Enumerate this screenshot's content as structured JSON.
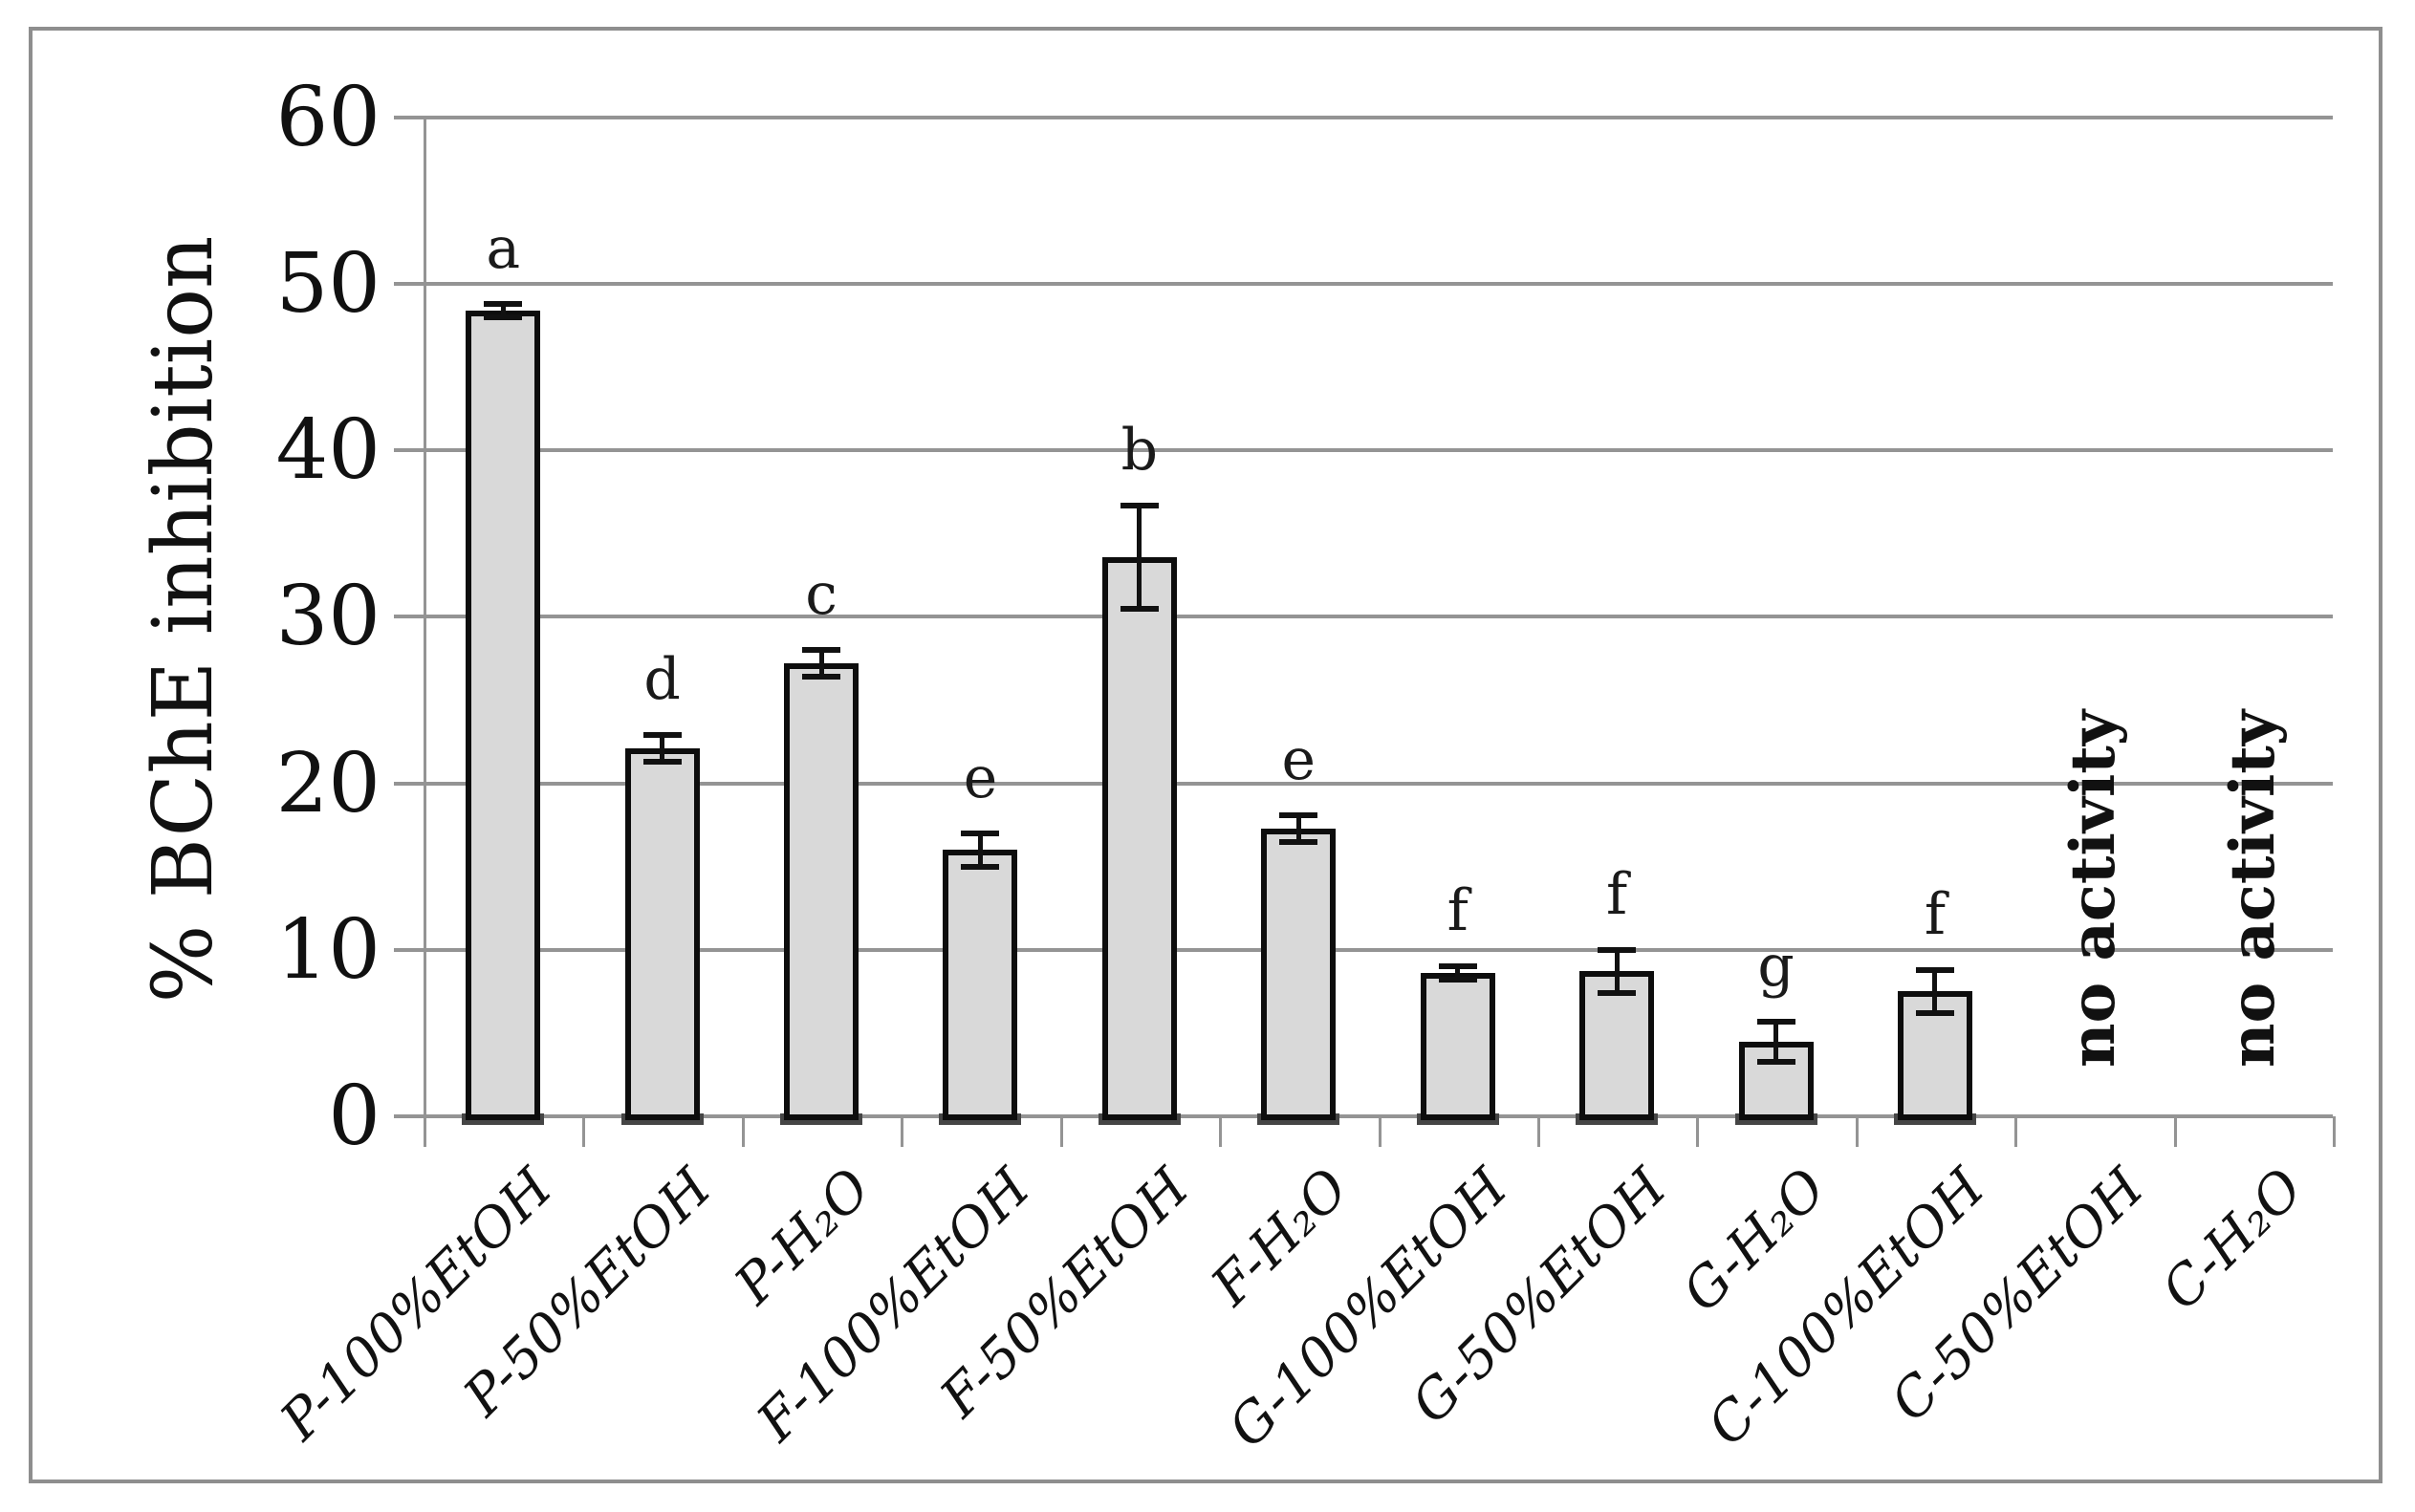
{
  "figure": {
    "background": "#ffffff",
    "border_color": "#8e8e8e"
  },
  "chart_data": {
    "type": "bar",
    "title": "",
    "xlabel": "",
    "ylabel": "% BChE inhibition",
    "ylim": [
      0,
      60
    ],
    "yticks": [
      0,
      10,
      20,
      30,
      40,
      50,
      60
    ],
    "grid": "horizontal",
    "legend_position": "none",
    "categories": [
      "P-100%EtOH",
      "P-50%EtOH",
      "P-H₂O",
      "F-100%EtOH",
      "F-50%EtOH",
      "F-H₂O",
      "G-100%EtOH",
      "G-50%EtOH",
      "G-H₂O",
      "C-100%EtOH",
      "C-50%EtOH",
      "C-H₂O"
    ],
    "series": [
      {
        "name": "% BChE inhibition",
        "values": [
          48.4,
          22.1,
          27.2,
          16.0,
          33.6,
          17.3,
          8.6,
          8.7,
          4.5,
          7.5,
          null,
          null
        ],
        "errors": [
          0.4,
          0.8,
          0.8,
          1.0,
          3.1,
          0.8,
          0.4,
          1.3,
          1.2,
          1.3,
          null,
          null
        ],
        "sig_letters": [
          "a",
          "d",
          "c",
          "e",
          "b",
          "e",
          "f",
          "f",
          "g",
          "f",
          "",
          ""
        ],
        "annotations": [
          "",
          "",
          "",
          "",
          "",
          "",
          "",
          "",
          "",
          "",
          "no activity",
          "no activity"
        ]
      }
    ],
    "colors": {
      "bar_fill": "#d9d9d9",
      "bar_border": "#0d0d0d",
      "gridline": "#949494",
      "text": "#111111"
    }
  }
}
